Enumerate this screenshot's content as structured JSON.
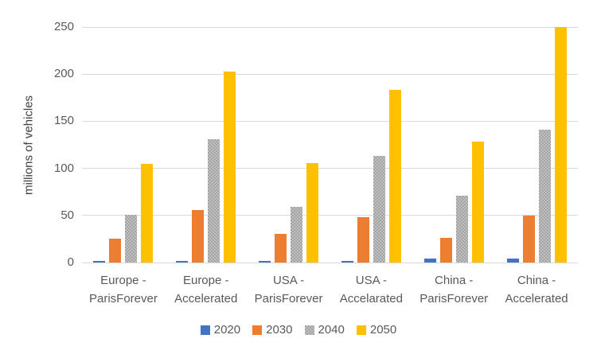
{
  "chart_data": {
    "type": "bar",
    "title": "",
    "xlabel": "",
    "ylabel": "millions of vehicles",
    "ylim": [
      0,
      250
    ],
    "yticks": [
      0,
      50,
      100,
      150,
      200,
      250
    ],
    "grid": true,
    "categories": [
      "Europe - ParisForever",
      "Europe - Accelerated",
      "USA - ParisForever",
      "USA - Accelarated",
      "China - ParisForever",
      "China - Accelerated"
    ],
    "category_label_lines": [
      [
        "Europe -",
        "ParisForever"
      ],
      [
        "Europe -",
        "Accelerated"
      ],
      [
        "USA -",
        "ParisForever"
      ],
      [
        "USA -",
        "Accelarated"
      ],
      [
        "China -",
        "ParisForever"
      ],
      [
        "China -",
        "Accelerated"
      ]
    ],
    "series": [
      {
        "name": "2020",
        "color": "#4472C4",
        "values": [
          2,
          2,
          1.5,
          1.5,
          4,
          4
        ]
      },
      {
        "name": "2030",
        "color": "#ED7D31",
        "values": [
          25,
          56,
          30,
          48,
          26,
          50
        ]
      },
      {
        "name": "2040",
        "color": "#A5A5A5",
        "values": [
          51,
          131,
          59,
          113,
          71,
          141
        ]
      },
      {
        "name": "2050",
        "color": "#FFC000",
        "values": [
          105,
          203,
          106,
          183,
          128,
          250
        ]
      }
    ],
    "legend": {
      "position": "bottom",
      "entries": [
        "2020",
        "2030",
        "2040",
        "2050"
      ]
    },
    "colors": {
      "gridline": "#D9D9D9",
      "axis_text": "#595959",
      "background": "#FFFFFF"
    }
  }
}
